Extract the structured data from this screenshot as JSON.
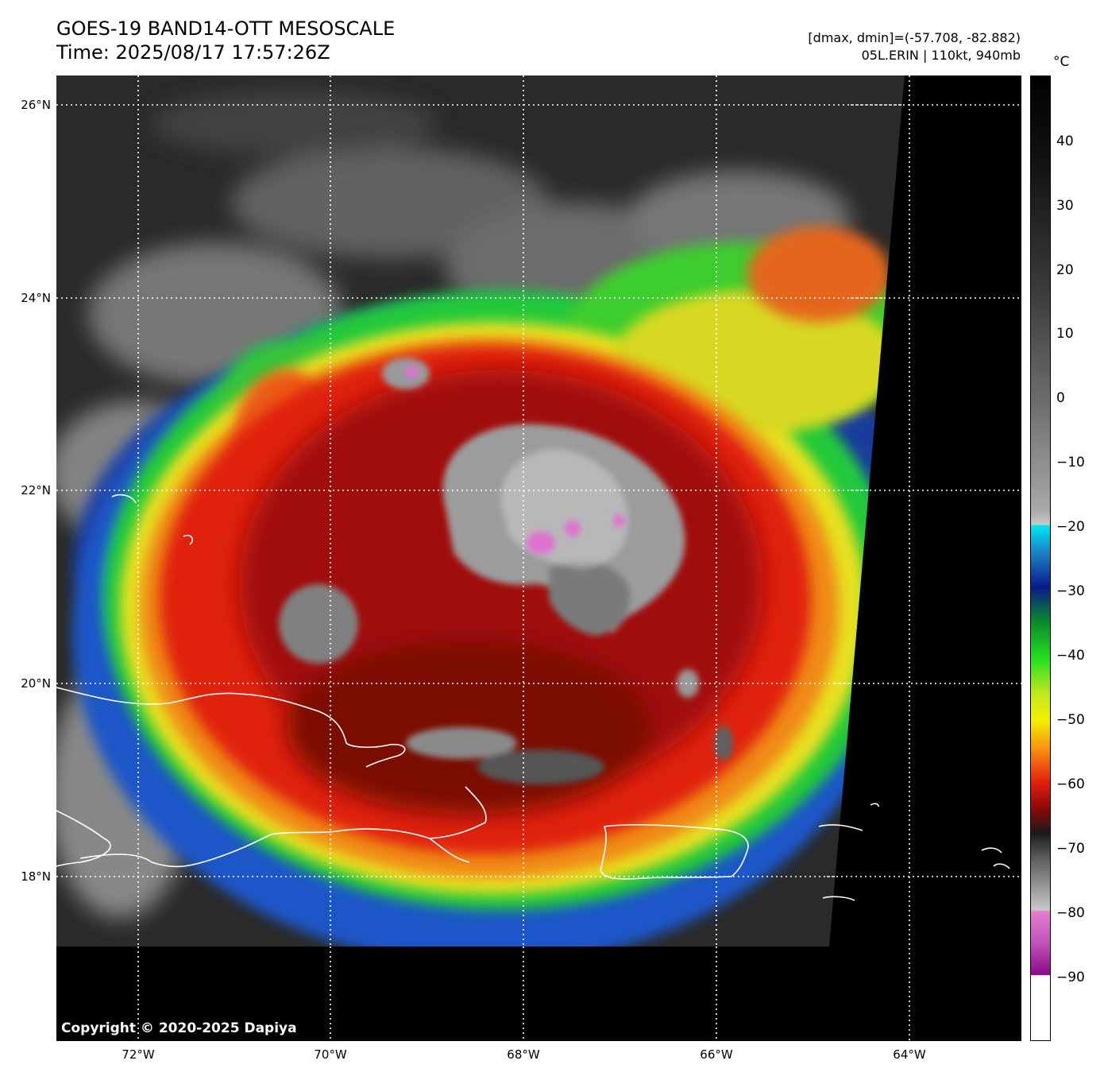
{
  "header": {
    "title": "GOES-19 BAND14-OTT MESOSCALE",
    "time": "Time: 2025/08/17 17:57:26Z",
    "range": "[dmax, dmin]=(-57.708, -82.882)",
    "storm": "05L.ERIN | 110kt, 940mb"
  },
  "axes": {
    "lat_labels": [
      "26°N",
      "24°N",
      "22°N",
      "20°N",
      "18°N"
    ],
    "lon_labels": [
      "72°W",
      "70°W",
      "68°W",
      "66°W",
      "64°W"
    ]
  },
  "colorbar": {
    "unit": "°C",
    "ticks": [
      "40",
      "30",
      "20",
      "10",
      "0",
      "−10",
      "−20",
      "−30",
      "−40",
      "−50",
      "−60",
      "−70",
      "−80",
      "−90"
    ]
  },
  "copyright": "Copyright © 2020-2025 Dapiya",
  "colors": {
    "background": "#000000",
    "coastline": "#ffffff",
    "grid": "#ffffff"
  }
}
